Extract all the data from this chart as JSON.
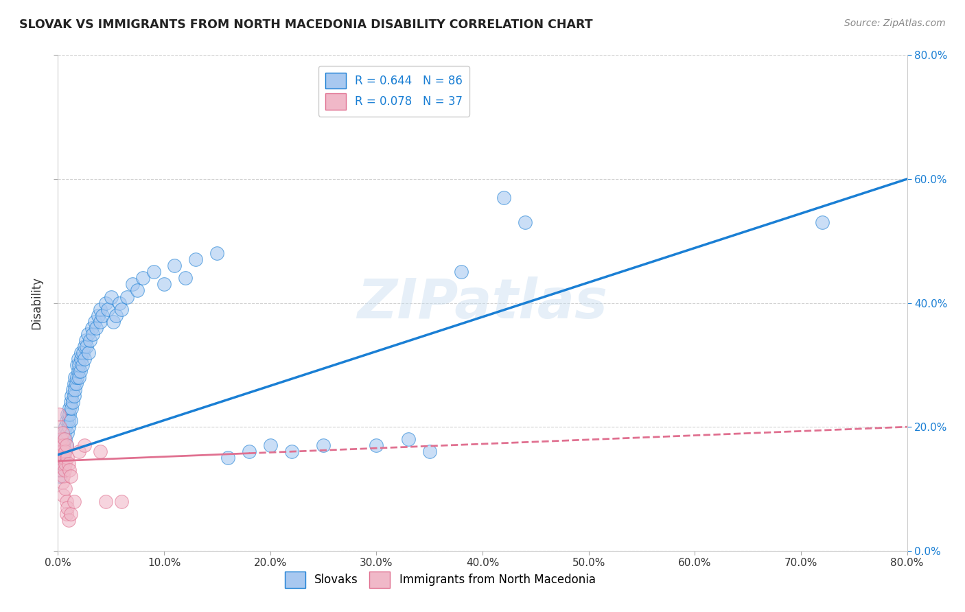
{
  "title": "SLOVAK VS IMMIGRANTS FROM NORTH MACEDONIA DISABILITY CORRELATION CHART",
  "source": "Source: ZipAtlas.com",
  "ylabel": "Disability",
  "xlim": [
    0.0,
    0.8
  ],
  "ylim": [
    0.0,
    0.8
  ],
  "Slovak_R": 0.644,
  "Slovak_N": 86,
  "NMacedonia_R": 0.078,
  "NMacedonia_N": 37,
  "slovak_color": "#a8c8f0",
  "nmacedonia_color": "#f0b8c8",
  "regression_slovak_color": "#1a7fd4",
  "regression_nmacedonia_color": "#e07090",
  "watermark": "ZIPatlas",
  "slovak_scatter": [
    [
      0.002,
      0.12
    ],
    [
      0.003,
      0.13
    ],
    [
      0.003,
      0.15
    ],
    [
      0.004,
      0.14
    ],
    [
      0.004,
      0.16
    ],
    [
      0.005,
      0.15
    ],
    [
      0.005,
      0.17
    ],
    [
      0.005,
      0.18
    ],
    [
      0.006,
      0.16
    ],
    [
      0.006,
      0.19
    ],
    [
      0.007,
      0.18
    ],
    [
      0.007,
      0.2
    ],
    [
      0.008,
      0.17
    ],
    [
      0.008,
      0.21
    ],
    [
      0.009,
      0.19
    ],
    [
      0.009,
      0.22
    ],
    [
      0.01,
      0.2
    ],
    [
      0.01,
      0.21
    ],
    [
      0.011,
      0.22
    ],
    [
      0.011,
      0.23
    ],
    [
      0.012,
      0.21
    ],
    [
      0.012,
      0.24
    ],
    [
      0.013,
      0.23
    ],
    [
      0.013,
      0.25
    ],
    [
      0.014,
      0.24
    ],
    [
      0.014,
      0.26
    ],
    [
      0.015,
      0.25
    ],
    [
      0.015,
      0.27
    ],
    [
      0.016,
      0.26
    ],
    [
      0.016,
      0.28
    ],
    [
      0.017,
      0.27
    ],
    [
      0.018,
      0.28
    ],
    [
      0.018,
      0.3
    ],
    [
      0.019,
      0.29
    ],
    [
      0.019,
      0.31
    ],
    [
      0.02,
      0.28
    ],
    [
      0.02,
      0.3
    ],
    [
      0.021,
      0.29
    ],
    [
      0.022,
      0.31
    ],
    [
      0.022,
      0.32
    ],
    [
      0.023,
      0.3
    ],
    [
      0.024,
      0.32
    ],
    [
      0.025,
      0.33
    ],
    [
      0.025,
      0.31
    ],
    [
      0.026,
      0.34
    ],
    [
      0.027,
      0.33
    ],
    [
      0.028,
      0.35
    ],
    [
      0.029,
      0.32
    ],
    [
      0.03,
      0.34
    ],
    [
      0.032,
      0.36
    ],
    [
      0.033,
      0.35
    ],
    [
      0.035,
      0.37
    ],
    [
      0.036,
      0.36
    ],
    [
      0.038,
      0.38
    ],
    [
      0.04,
      0.37
    ],
    [
      0.04,
      0.39
    ],
    [
      0.042,
      0.38
    ],
    [
      0.045,
      0.4
    ],
    [
      0.047,
      0.39
    ],
    [
      0.05,
      0.41
    ],
    [
      0.052,
      0.37
    ],
    [
      0.055,
      0.38
    ],
    [
      0.058,
      0.4
    ],
    [
      0.06,
      0.39
    ],
    [
      0.065,
      0.41
    ],
    [
      0.07,
      0.43
    ],
    [
      0.075,
      0.42
    ],
    [
      0.08,
      0.44
    ],
    [
      0.09,
      0.45
    ],
    [
      0.1,
      0.43
    ],
    [
      0.11,
      0.46
    ],
    [
      0.12,
      0.44
    ],
    [
      0.13,
      0.47
    ],
    [
      0.15,
      0.48
    ],
    [
      0.16,
      0.15
    ],
    [
      0.18,
      0.16
    ],
    [
      0.2,
      0.17
    ],
    [
      0.22,
      0.16
    ],
    [
      0.25,
      0.17
    ],
    [
      0.3,
      0.17
    ],
    [
      0.33,
      0.18
    ],
    [
      0.35,
      0.16
    ],
    [
      0.38,
      0.45
    ],
    [
      0.42,
      0.57
    ],
    [
      0.44,
      0.53
    ],
    [
      0.72,
      0.53
    ]
  ],
  "nmacedonia_scatter": [
    [
      0.001,
      0.22
    ],
    [
      0.002,
      0.2
    ],
    [
      0.002,
      0.17
    ],
    [
      0.002,
      0.15
    ],
    [
      0.003,
      0.18
    ],
    [
      0.003,
      0.16
    ],
    [
      0.003,
      0.13
    ],
    [
      0.004,
      0.19
    ],
    [
      0.004,
      0.16
    ],
    [
      0.004,
      0.14
    ],
    [
      0.004,
      0.11
    ],
    [
      0.005,
      0.17
    ],
    [
      0.005,
      0.15
    ],
    [
      0.005,
      0.12
    ],
    [
      0.005,
      0.09
    ],
    [
      0.006,
      0.18
    ],
    [
      0.006,
      0.15
    ],
    [
      0.006,
      0.13
    ],
    [
      0.007,
      0.16
    ],
    [
      0.007,
      0.14
    ],
    [
      0.007,
      0.1
    ],
    [
      0.008,
      0.17
    ],
    [
      0.008,
      0.08
    ],
    [
      0.008,
      0.06
    ],
    [
      0.009,
      0.15
    ],
    [
      0.009,
      0.07
    ],
    [
      0.01,
      0.14
    ],
    [
      0.01,
      0.05
    ],
    [
      0.011,
      0.13
    ],
    [
      0.012,
      0.12
    ],
    [
      0.012,
      0.06
    ],
    [
      0.015,
      0.08
    ],
    [
      0.02,
      0.16
    ],
    [
      0.025,
      0.17
    ],
    [
      0.04,
      0.16
    ],
    [
      0.045,
      0.08
    ],
    [
      0.06,
      0.08
    ]
  ],
  "regression_slovak": [
    0.0,
    0.8,
    0.155,
    0.6
  ],
  "regression_nm": [
    0.0,
    0.8,
    0.145,
    0.2
  ]
}
